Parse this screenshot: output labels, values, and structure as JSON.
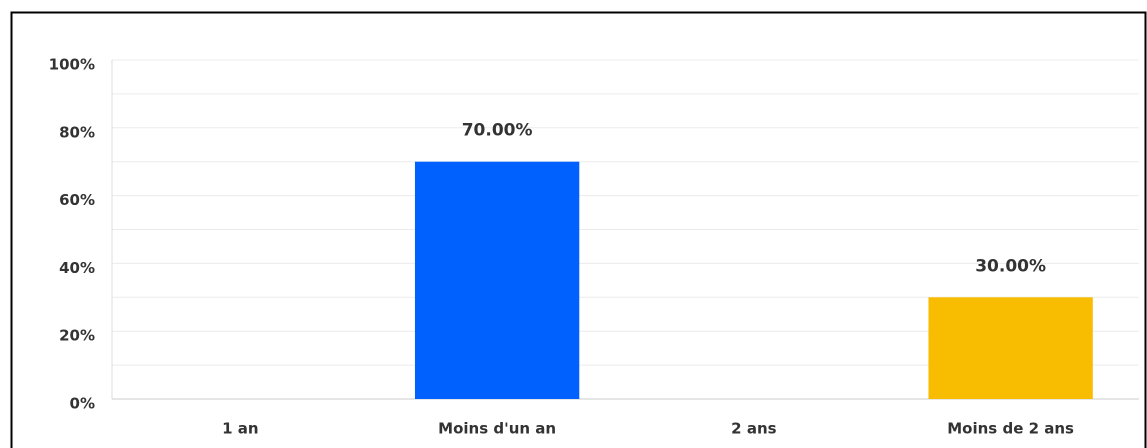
{
  "chart_data": {
    "type": "bar",
    "categories": [
      "1 an",
      "Moins d'un an",
      "2 ans",
      "Moins de 2 ans"
    ],
    "values": [
      0,
      70,
      0,
      30
    ],
    "value_labels": [
      null,
      "70.00%",
      null,
      "30.00%"
    ],
    "colors": [
      "#0061fe",
      "#0061fe",
      "#f8bc00",
      "#f8bc00"
    ],
    "ylim": [
      0,
      100
    ],
    "yticks": [
      {
        "value": 0,
        "label": "0%"
      },
      {
        "value": 20,
        "label": "20%"
      },
      {
        "value": 40,
        "label": "40%"
      },
      {
        "value": 60,
        "label": "60%"
      },
      {
        "value": 80,
        "label": "80%"
      },
      {
        "value": 100,
        "label": "100%"
      }
    ],
    "grid": true,
    "minor_grid": true
  }
}
